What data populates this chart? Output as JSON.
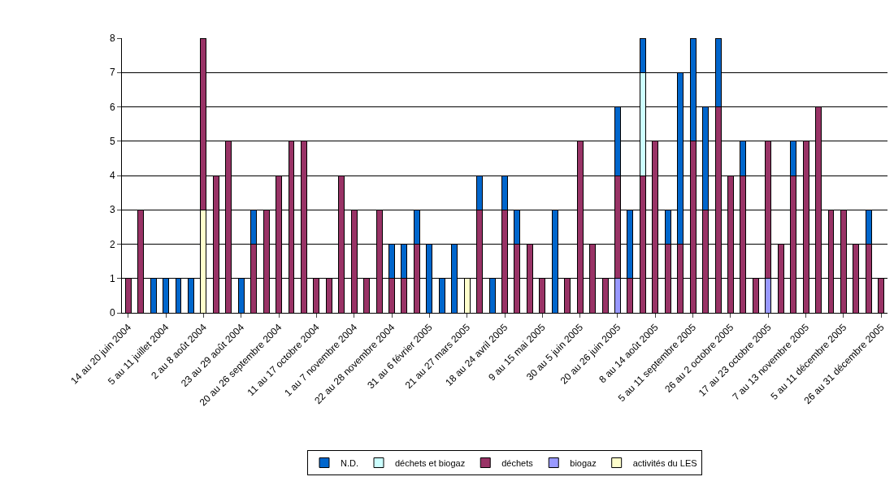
{
  "chart_data": {
    "type": "bar",
    "stacked": true,
    "categories": [
      "14 au 20 juin 2004",
      null,
      null,
      "5 au 11 juillet 2004",
      null,
      null,
      "2 au 8 août 2004",
      null,
      null,
      "23 au 29 août 2004",
      null,
      null,
      "20 au 26 septembre 2004",
      null,
      null,
      "11 au 17 octobre 2004",
      null,
      null,
      "1 au 7 novembre 2004",
      null,
      null,
      "22 au 28 novembre 2004",
      null,
      null,
      "31 au 6 février 2005",
      null,
      null,
      "21 au 27 mars 2005",
      null,
      null,
      "18 au 24 avril 2005",
      null,
      null,
      "9 au 15 mai 2005",
      null,
      null,
      "30 au 5 juin 2005",
      null,
      null,
      "20 au 26 juin 2005",
      null,
      null,
      "8 au 14 août 2005",
      null,
      null,
      "5 au 11 septembre 2005",
      null,
      null,
      "26 au 2 octobre 2005",
      null,
      null,
      "17 au 23 octobre 2005",
      null,
      null,
      "7 au 13 novembre 2005",
      null,
      null,
      "5 au 11 décembre 2005",
      null,
      null,
      "26 au 31 décembre 2005"
    ],
    "series": [
      {
        "name": "activités du LES",
        "color": "#ffffcc",
        "values": [
          null,
          null,
          null,
          null,
          null,
          null,
          3,
          null,
          null,
          null,
          null,
          null,
          null,
          null,
          null,
          null,
          null,
          null,
          null,
          null,
          null,
          null,
          null,
          null,
          null,
          null,
          null,
          1,
          null,
          null,
          null,
          null,
          null,
          null,
          null,
          null,
          null,
          null,
          null,
          null,
          null,
          null,
          null,
          null,
          null,
          null,
          null,
          null,
          null,
          null,
          null,
          null,
          null,
          null,
          null,
          null,
          null,
          null,
          null,
          null,
          null
        ]
      },
      {
        "name": "biogaz",
        "color": "#9999ff",
        "values": [
          null,
          null,
          null,
          null,
          null,
          null,
          null,
          null,
          null,
          null,
          null,
          null,
          null,
          null,
          null,
          null,
          null,
          null,
          null,
          null,
          null,
          null,
          null,
          null,
          null,
          null,
          null,
          null,
          null,
          null,
          null,
          null,
          null,
          null,
          null,
          null,
          null,
          null,
          null,
          1,
          null,
          null,
          null,
          null,
          null,
          null,
          null,
          null,
          null,
          null,
          null,
          1,
          null,
          null,
          null,
          null,
          null,
          null,
          null,
          null,
          null
        ]
      },
      {
        "name": "déchets",
        "color": "#993366",
        "values": [
          1,
          3,
          null,
          null,
          null,
          null,
          5,
          4,
          5,
          null,
          2,
          3,
          4,
          5,
          5,
          1,
          1,
          4,
          3,
          1,
          3,
          1,
          1,
          2,
          null,
          null,
          null,
          null,
          3,
          null,
          3,
          2,
          2,
          1,
          null,
          1,
          5,
          2,
          1,
          3,
          1,
          4,
          5,
          2,
          2,
          5,
          3,
          6,
          4,
          4,
          1,
          4,
          2,
          4,
          5,
          6,
          3,
          3,
          2,
          2,
          1
        ]
      },
      {
        "name": "déchets et biogaz",
        "color": "#ccffff",
        "values": [
          null,
          null,
          null,
          null,
          null,
          null,
          null,
          null,
          null,
          null,
          null,
          null,
          null,
          null,
          null,
          null,
          null,
          null,
          null,
          null,
          null,
          null,
          null,
          null,
          null,
          null,
          null,
          null,
          null,
          null,
          null,
          null,
          null,
          null,
          null,
          null,
          null,
          null,
          null,
          null,
          null,
          3,
          null,
          null,
          null,
          null,
          null,
          null,
          null,
          null,
          null,
          null,
          null,
          null,
          null,
          null,
          null,
          null,
          null,
          null,
          null
        ]
      },
      {
        "name": "N.D.",
        "color": "#0066cc",
        "values": [
          null,
          null,
          1,
          1,
          1,
          1,
          null,
          null,
          null,
          1,
          1,
          null,
          null,
          null,
          null,
          null,
          null,
          null,
          null,
          null,
          null,
          1,
          1,
          1,
          2,
          1,
          2,
          null,
          1,
          1,
          1,
          1,
          null,
          null,
          3,
          null,
          null,
          null,
          null,
          2,
          2,
          1,
          null,
          1,
          5,
          3,
          3,
          2,
          null,
          1,
          null,
          null,
          null,
          1,
          null,
          null,
          null,
          null,
          null,
          1,
          null
        ]
      }
    ],
    "ylim": [
      0,
      8
    ],
    "yticks": [
      0,
      1,
      2,
      3,
      4,
      5,
      6,
      7,
      8
    ],
    "grid": "y",
    "legend": "bottom"
  }
}
